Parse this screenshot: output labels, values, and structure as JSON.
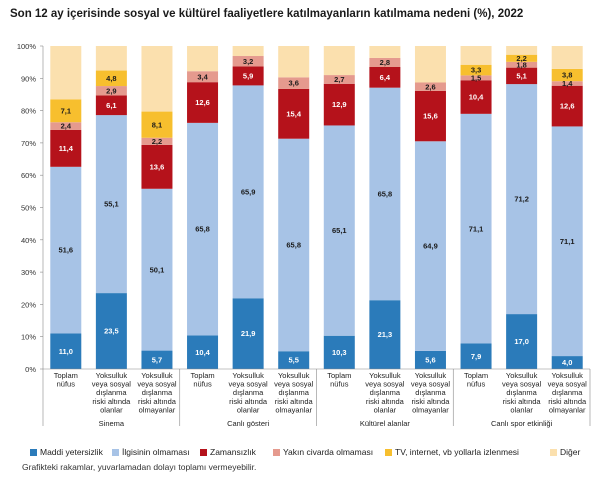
{
  "chart_data": {
    "type": "bar",
    "stacked": true,
    "title": "Son 12 ay içerisinde sosyal ve kültürel faaliyetlere katılmayanların katılmama nedeni (%), 2022",
    "ylim": [
      0,
      100
    ],
    "yticks": [
      "0%",
      "10%",
      "20%",
      "30%",
      "40%",
      "50%",
      "60%",
      "70%",
      "80%",
      "90%",
      "100%"
    ],
    "groups": [
      {
        "name": "Sinema",
        "start": 0,
        "count": 3
      },
      {
        "name": "Canlı gösteri",
        "start": 3,
        "count": 3
      },
      {
        "name": "Kültürel alanlar",
        "start": 6,
        "count": 3
      },
      {
        "name": "Canlı spor etkinliği",
        "start": 9,
        "count": 3
      }
    ],
    "categories": [
      "Toplam nüfus",
      "Yoksulluk veya sosyal dışlanma riski altında olanlar",
      "Yoksulluk veya sosyal dışlanma riski altında olmayanlar",
      "Toplam nüfus",
      "Yoksulluk veya sosyal dışlanma riski altında olanlar",
      "Yoksulluk veya sosyal dışlanma riski altında olmayanlar",
      "Toplam nüfus",
      "Yoksulluk veya sosyal dışlanma riski altında olanlar",
      "Yoksulluk veya sosyal dışlanma riski altında olmayanlar",
      "Toplam nüfus",
      "Yoksulluk veya sosyal dışlanma riski altında olanlar",
      "Yoksulluk veya sosyal dışlanma riski altında olmayanlar"
    ],
    "category_lines": [
      [
        "Toplam",
        "nüfus"
      ],
      [
        "Yoksulluk",
        "veya sosyal",
        "dışlanma",
        "riski altında",
        "olanlar"
      ],
      [
        "Yoksulluk",
        "veya sosyal",
        "dışlanma",
        "riski altında",
        "olmayanlar"
      ],
      [
        "Toplam",
        "nüfus"
      ],
      [
        "Yoksulluk",
        "veya sosyal",
        "dışlanma",
        "riski altında",
        "olanlar"
      ],
      [
        "Yoksulluk",
        "veya sosyal",
        "dışlanma",
        "riski altında",
        "olmayanlar"
      ],
      [
        "Toplam",
        "nüfus"
      ],
      [
        "Yoksulluk",
        "veya sosyal",
        "dışlanma",
        "riski altında",
        "olanlar"
      ],
      [
        "Yoksulluk",
        "veya sosyal",
        "dışlanma",
        "riski altında",
        "olmayanlar"
      ],
      [
        "Toplam",
        "nüfus"
      ],
      [
        "Yoksulluk",
        "veya sosyal",
        "dışlanma",
        "riski altında",
        "olanlar"
      ],
      [
        "Yoksulluk",
        "veya sosyal",
        "dışlanma",
        "riski altında",
        "olmayanlar"
      ]
    ],
    "series": [
      {
        "name": "Maddi yetersizlik",
        "color": "#2b7bba",
        "label_color": "#ffffff",
        "values": [
          11.0,
          23.5,
          5.7,
          10.4,
          21.9,
          5.5,
          10.3,
          21.3,
          5.6,
          7.9,
          17.0,
          4.0
        ]
      },
      {
        "name": "İlgisinin olmaması",
        "color": "#a7c3e6",
        "label_color": "#1a1a1a",
        "values": [
          51.6,
          55.1,
          50.1,
          65.8,
          65.9,
          65.8,
          65.1,
          65.8,
          64.9,
          71.1,
          71.2,
          71.1
        ]
      },
      {
        "name": "Zamansızlık",
        "color": "#b5121b",
        "label_color": "#ffffff",
        "values": [
          11.4,
          6.1,
          13.6,
          12.6,
          5.9,
          15.4,
          12.9,
          6.4,
          15.6,
          10.4,
          5.1,
          12.6
        ]
      },
      {
        "name": "Yakın civarda olmaması",
        "color": "#e59a8e",
        "label_color": "#1a1a1a",
        "values": [
          2.4,
          2.9,
          2.2,
          3.4,
          3.2,
          3.6,
          2.7,
          2.8,
          2.6,
          1.5,
          1.8,
          1.4
        ]
      },
      {
        "name": "TV, internet, vb yollarla izlenmesi",
        "color": "#f7bf2e",
        "label_color": "#1a1a1a",
        "values": [
          7.1,
          4.8,
          8.1,
          0,
          0,
          0,
          0,
          0,
          0,
          3.3,
          2.2,
          3.8
        ]
      },
      {
        "name": "Diğer",
        "color": "#fbe0ae",
        "label_color": "#1a1a1a",
        "values": [
          16.5,
          7.6,
          20.3,
          7.8,
          3.1,
          9.7,
          9.0,
          3.7,
          11.3,
          5.8,
          2.7,
          7.1
        ]
      }
    ],
    "hidden_labels": [
      "Diğer"
    ],
    "legend": "bottom",
    "grid": false,
    "footnote": "Grafikteki rakamlar, yuvarlamadan dolayı toplamı vermeyebilir."
  }
}
